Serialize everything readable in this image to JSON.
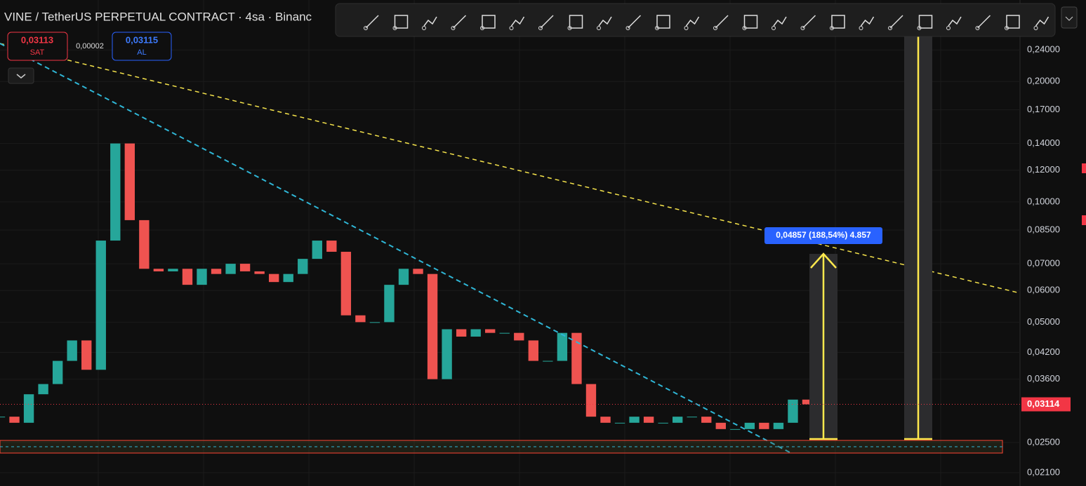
{
  "header": {
    "symbol": "VINE / TetherUS PERPETUAL CONTRACT · 4sa · Binanc",
    "sell_price": "0,03113",
    "sell_label": "SAT",
    "spread": "0,00002",
    "buy_price": "0,03115",
    "buy_label": "AL"
  },
  "measure_label": "0,04857 (188,54%) 4.857",
  "chart_data": {
    "type": "candlestick",
    "log_scale": true,
    "values": [
      0.029,
      0.028,
      0.033,
      0.035,
      0.04,
      0.045,
      0.038,
      0.08,
      0.14,
      0.09,
      0.068,
      0.067,
      0.068,
      0.062,
      0.068,
      0.066,
      0.07,
      0.067,
      0.066,
      0.063,
      0.066,
      0.072,
      0.08,
      0.075,
      0.052,
      0.05,
      0.05,
      0.062,
      0.068,
      0.066,
      0.036,
      0.048,
      0.046,
      0.048,
      0.047,
      0.047,
      0.045,
      0.04,
      0.04,
      0.047,
      0.035,
      0.029,
      0.028,
      0.028,
      0.029,
      0.028,
      0.028,
      0.029,
      0.029,
      0.028,
      0.027,
      0.027,
      0.028,
      0.027,
      0.028,
      0.032,
      0.03114
    ],
    "up_color": "#26a69a",
    "down_color": "#ef5350",
    "ylim": [
      0.01945,
      0.32
    ],
    "yticks": [
      {
        "value": 0.24,
        "label": "0,24000"
      },
      {
        "value": 0.2,
        "label": "0,20000"
      },
      {
        "value": 0.17,
        "label": "0,17000"
      },
      {
        "value": 0.14,
        "label": "0,14000"
      },
      {
        "value": 0.12,
        "label": "0,12000"
      },
      {
        "value": 0.1,
        "label": "0,10000"
      },
      {
        "value": 0.085,
        "label": "0,08500"
      },
      {
        "value": 0.07,
        "label": "0,07000"
      },
      {
        "value": 0.06,
        "label": "0,06000"
      },
      {
        "value": 0.05,
        "label": "0,05000"
      },
      {
        "value": 0.042,
        "label": "0,04200"
      },
      {
        "value": 0.036,
        "label": "0,03600"
      },
      {
        "value": 0.025,
        "label": "0,02500"
      },
      {
        "value": 0.021,
        "label": "0,02100"
      }
    ],
    "last_price": {
      "value": 0.03114,
      "label": "0,03114"
    },
    "grid": true
  }
}
